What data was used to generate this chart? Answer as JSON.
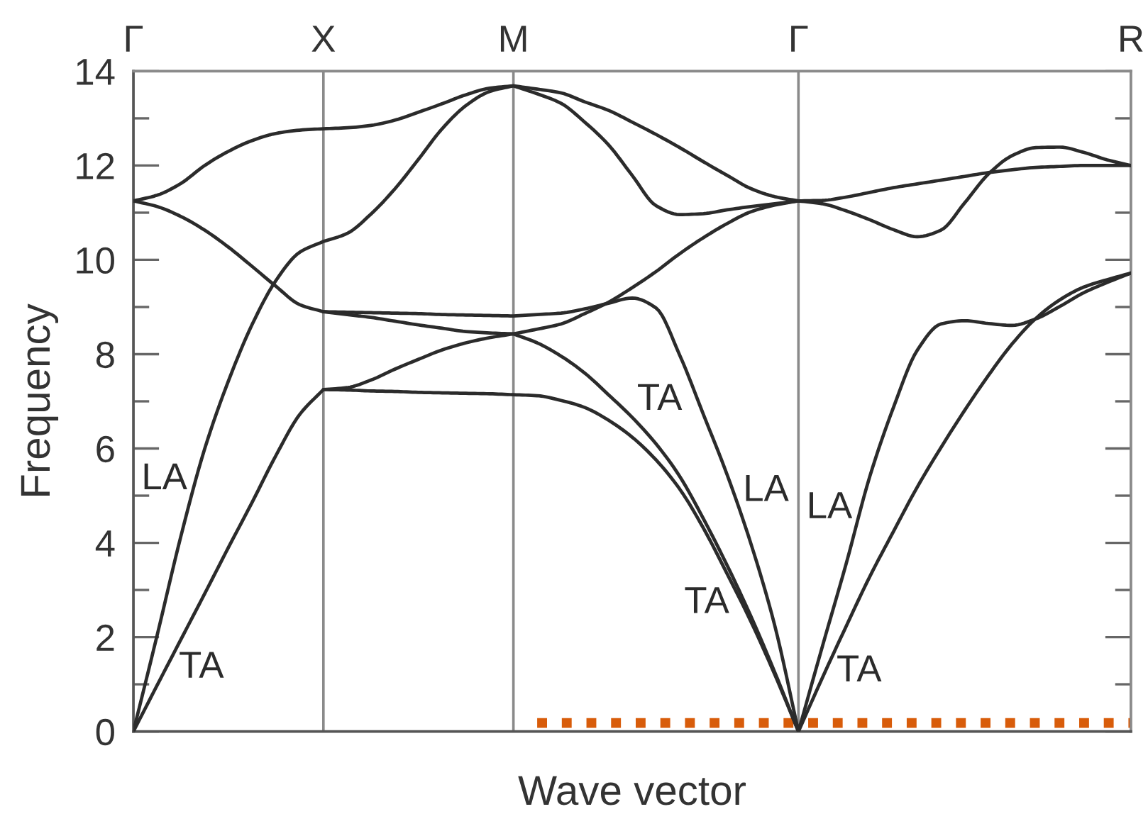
{
  "chart_data": {
    "type": "line",
    "xlabel": "Wave vector",
    "ylabel": "Frequency",
    "categories": [
      "Γ",
      null,
      null,
      null,
      null,
      null,
      null,
      null,
      "X",
      null,
      null,
      null,
      null,
      null,
      null,
      null,
      "M",
      null,
      null,
      null,
      null,
      null,
      null,
      null,
      null,
      null,
      null,
      null,
      "Γ",
      null,
      null,
      null,
      null,
      null,
      null,
      null,
      null,
      null,
      null,
      null,
      null,
      null,
      "R"
    ],
    "ylim": [
      0,
      14
    ],
    "yticks": [
      0,
      {
        "value": 1,
        "label": null
      },
      2,
      {
        "value": 3,
        "label": null
      },
      4,
      {
        "value": 5,
        "label": null
      },
      6,
      {
        "value": 7,
        "label": null
      },
      8,
      {
        "value": 9,
        "label": null
      },
      10,
      {
        "value": 11,
        "label": null
      },
      12,
      {
        "value": 13,
        "label": null
      },
      14
    ],
    "grid": "x",
    "line_style": "solid",
    "series": [
      {
        "name": "TA",
        "color": "#2b2b2b",
        "values": [
          0,
          0.98,
          1.95,
          2.92,
          3.9,
          4.86,
          5.85,
          6.72,
          7.25,
          7.24,
          7.22,
          7.21,
          7.19,
          7.18,
          7.17,
          7.16,
          7.14,
          7.12,
          7.02,
          6.87,
          6.6,
          6.24,
          5.76,
          5.14,
          4.31,
          3.34,
          2.33,
          1.21,
          0,
          1.13,
          2.22,
          3.28,
          4.24,
          5.18,
          6.02,
          6.81,
          7.55,
          8.22,
          8.76,
          9.15,
          9.42,
          9.58,
          9.72
        ]
      },
      {
        "name": "TA",
        "color": "#2b2b2b",
        "values": [
          null,
          null,
          null,
          null,
          null,
          null,
          null,
          null,
          7.25,
          7.29,
          7.45,
          7.68,
          7.89,
          8.09,
          8.24,
          8.35,
          8.43,
          8.24,
          7.96,
          7.6,
          7.14,
          6.66,
          6.1,
          5.41,
          4.51,
          3.52,
          2.44,
          1.26,
          0,
          null,
          null,
          null,
          null,
          null,
          null,
          null,
          null,
          null,
          null,
          null,
          null,
          null,
          null
        ]
      },
      {
        "name": "LA",
        "color": "#2b2b2b",
        "values": [
          0,
          2.04,
          4.14,
          5.99,
          7.43,
          8.63,
          9.56,
          10.16,
          10.39,
          10.56,
          10.97,
          11.5,
          12.13,
          12.78,
          13.27,
          13.57,
          13.69,
          13.52,
          13.32,
          12.92,
          12.44,
          11.79,
          11.15,
          10.96,
          10.98,
          11.06,
          11.13,
          11.19,
          11.25,
          11.19,
          11.04,
          10.85,
          10.64,
          10.49,
          10.63,
          11.21,
          11.82,
          12.21,
          12.38,
          12.39,
          12.28,
          12.12,
          12.0
        ]
      },
      {
        "color": "#2b2b2b",
        "values": [
          11.25,
          11.37,
          11.62,
          12.0,
          12.3,
          12.53,
          12.68,
          12.75,
          12.78,
          12.8,
          12.85,
          12.96,
          13.13,
          13.31,
          13.5,
          13.64,
          13.69,
          13.62,
          13.54,
          13.35,
          13.17,
          12.92,
          12.66,
          12.38,
          12.08,
          11.79,
          11.51,
          11.34,
          11.25,
          11.26,
          11.33,
          11.43,
          11.53,
          11.61,
          11.69,
          11.77,
          11.85,
          11.91,
          11.96,
          11.98,
          12.0,
          12.0,
          12.0
        ]
      },
      {
        "name": "LA",
        "color": "#2b2b2b",
        "values": [
          11.25,
          11.13,
          10.92,
          10.63,
          10.27,
          9.86,
          9.44,
          9.05,
          8.9,
          8.89,
          8.88,
          8.87,
          8.86,
          8.84,
          8.83,
          8.82,
          8.81,
          8.84,
          8.87,
          8.96,
          9.08,
          9.19,
          8.98,
          7.98,
          6.72,
          5.44,
          3.98,
          2.25,
          0,
          1.79,
          3.54,
          5.4,
          6.87,
          8.08,
          8.64,
          8.71,
          8.65,
          8.61,
          8.75,
          9.01,
          9.3,
          9.52,
          9.72
        ]
      },
      {
        "color": "#2b2b2b",
        "values": [
          null,
          null,
          null,
          null,
          null,
          null,
          null,
          null,
          8.9,
          8.84,
          8.78,
          8.7,
          8.62,
          8.55,
          8.48,
          8.45,
          8.43,
          8.53,
          8.64,
          8.86,
          9.1,
          9.41,
          9.75,
          10.13,
          10.47,
          10.77,
          11.02,
          11.16,
          11.25,
          null,
          null,
          null,
          null,
          null,
          null,
          null,
          null,
          null,
          null,
          null,
          null,
          null,
          null
        ]
      },
      {
        "color": "#d85c0a",
        "line_style": "dotted",
        "values": [
          null,
          null,
          null,
          null,
          null,
          null,
          null,
          null,
          null,
          null,
          null,
          null,
          null,
          null,
          null,
          null,
          null,
          0.18,
          0.18,
          0.18,
          0.18,
          0.18,
          0.18,
          0.18,
          0.18,
          0.18,
          0.18,
          0.18,
          0.18,
          0.18,
          0.18,
          0.18,
          0.18,
          0.18,
          0.18,
          0.18,
          0.18,
          0.18,
          0.18,
          0.18,
          0.18,
          0.18,
          0.18
        ]
      }
    ]
  }
}
